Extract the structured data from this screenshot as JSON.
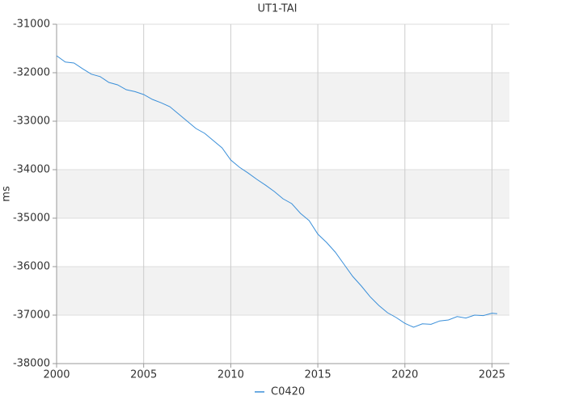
{
  "chart_data": {
    "type": "line",
    "title": "UT1-TAI",
    "y_label": "ms",
    "xlim": [
      2000,
      2026
    ],
    "xticks": [
      2000,
      2005,
      2010,
      2015,
      2020,
      2025
    ],
    "ylim": [
      -38000,
      -31000
    ],
    "yticks": [
      -38000,
      -37000,
      -36000,
      -35000,
      -34000,
      -33000,
      -32000,
      -31000
    ],
    "grid": true,
    "banded": true,
    "legend": "bottom",
    "series": [
      {
        "name": "C0420",
        "color": "#3a8fd9",
        "x": [
          2000.0,
          2000.5,
          2001.0,
          2001.5,
          2002.0,
          2002.5,
          2003.0,
          2003.5,
          2004.0,
          2004.5,
          2005.0,
          2005.5,
          2006.0,
          2006.5,
          2007.0,
          2007.5,
          2008.0,
          2008.5,
          2009.0,
          2009.5,
          2010.0,
          2010.5,
          2011.0,
          2011.5,
          2012.0,
          2012.5,
          2013.0,
          2013.5,
          2014.0,
          2014.5,
          2015.0,
          2015.5,
          2016.0,
          2016.5,
          2017.0,
          2017.5,
          2018.0,
          2018.5,
          2019.0,
          2019.5,
          2020.0,
          2020.5,
          2021.0,
          2021.5,
          2022.0,
          2022.5,
          2023.0,
          2023.5,
          2024.0,
          2024.5,
          2025.0,
          2025.3
        ],
        "values": [
          -31650,
          -31780,
          -31800,
          -31920,
          -32030,
          -32080,
          -32200,
          -32250,
          -32350,
          -32390,
          -32450,
          -32550,
          -32620,
          -32700,
          -32850,
          -33000,
          -33150,
          -33250,
          -33400,
          -33550,
          -33800,
          -33950,
          -34070,
          -34200,
          -34320,
          -34450,
          -34600,
          -34700,
          -34900,
          -35050,
          -35330,
          -35500,
          -35700,
          -35950,
          -36200,
          -36400,
          -36620,
          -36800,
          -36950,
          -37050,
          -37170,
          -37250,
          -37180,
          -37190,
          -37120,
          -37100,
          -37030,
          -37060,
          -37000,
          -37010,
          -36960,
          -36970
        ]
      }
    ]
  }
}
